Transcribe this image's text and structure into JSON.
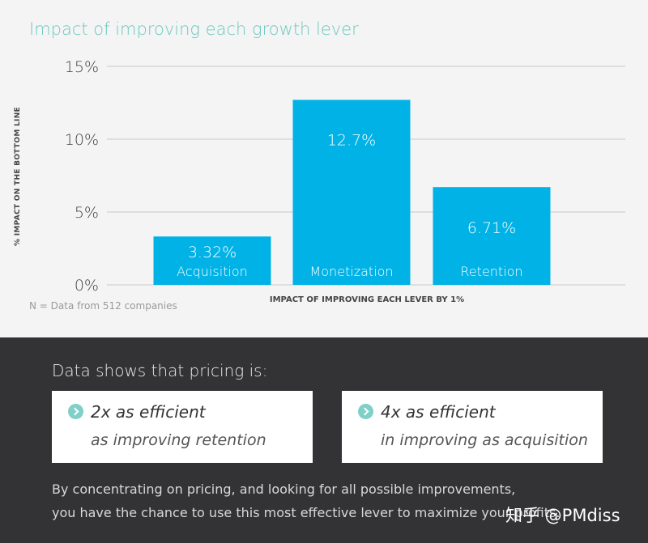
{
  "chart_data": {
    "type": "bar",
    "title": "Impact of improving each growth lever",
    "ylabel": "% IMPACT ON THE BOTTOM LINE",
    "xlabel": "IMPACT OF IMPROVING EACH LEVER BY 1%",
    "categories": [
      "Acquisition",
      "Monetization",
      "Retention"
    ],
    "values": [
      3.32,
      12.7,
      6.71
    ],
    "value_labels": [
      "3.32%",
      "12.7%",
      "6.71%"
    ],
    "ylim": [
      0,
      15
    ],
    "yticks": [
      0,
      5,
      10,
      15
    ],
    "ytick_labels": [
      "0%",
      "5%",
      "10%",
      "15%"
    ],
    "grid": true,
    "bar_color": "#00b2e6",
    "note": "N = Data from 512 companies"
  },
  "summary": {
    "headline": "Data shows that pricing is:",
    "cards": [
      {
        "line1": "2x as efficient",
        "line2": "as improving retention",
        "icon": "chevron-right-icon"
      },
      {
        "line1": "4x as efficient",
        "line2": "in improving as acquisition",
        "icon": "chevron-right-icon"
      }
    ],
    "paragraph_line1": "By concentrating on pricing, and looking for all possible improvements,",
    "paragraph_line2": "you have the chance to use this most effective lever to maximize your profits."
  },
  "watermark": "知乎 @PMdiss",
  "colors": {
    "title": "#6cc9c0",
    "bar": "#00b2e6",
    "dark_bg": "#333335",
    "icon": "#7fd0c8"
  }
}
